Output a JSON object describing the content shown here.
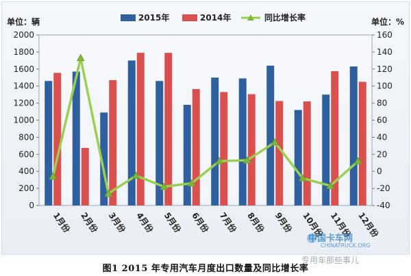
{
  "chart_data": {
    "type": "bar",
    "categories": [
      "1月份",
      "2月份",
      "3月份",
      "4月份",
      "5月份",
      "6月份",
      "7月份",
      "8月份",
      "9月份",
      "10月份",
      "11月份",
      "12月份"
    ],
    "series": [
      {
        "name": "2015年",
        "kind": "bar",
        "color": "#2e5f9e",
        "values": [
          1460,
          1570,
          1090,
          1700,
          1460,
          1180,
          1500,
          1490,
          1640,
          1120,
          1300,
          1630
        ]
      },
      {
        "name": "2014年",
        "kind": "bar",
        "color": "#d9504e",
        "values": [
          1555,
          675,
          1470,
          1790,
          1790,
          1365,
          1330,
          1305,
          1225,
          1220,
          1575,
          1450
        ]
      },
      {
        "name": "同比增长率",
        "kind": "line",
        "axis": "right",
        "color": "#9bcf52",
        "values": [
          -6,
          133,
          -26,
          -5,
          -18,
          -14,
          12,
          13,
          34,
          -8,
          -17,
          12
        ]
      }
    ],
    "left_unit": "单位：辆",
    "right_unit": "单位：%",
    "ylim_left": [
      0,
      2000
    ],
    "ylim_right": [
      -40,
      160
    ],
    "yticks_left": [
      0,
      200,
      400,
      600,
      800,
      1000,
      1200,
      1400,
      1600,
      1800,
      2000
    ],
    "yticks_right": [
      -40,
      -20,
      0,
      20,
      40,
      60,
      80,
      100,
      120,
      140,
      160
    ],
    "grid": false,
    "legend_position": "top"
  },
  "caption": "图1    2015 年专用汽车月度出口数量及同比增长率",
  "watermark": {
    "site_cn": "中国卡车网",
    "site_en": "CHINATRUCK.ORG",
    "account": "专用车那些事儿"
  }
}
